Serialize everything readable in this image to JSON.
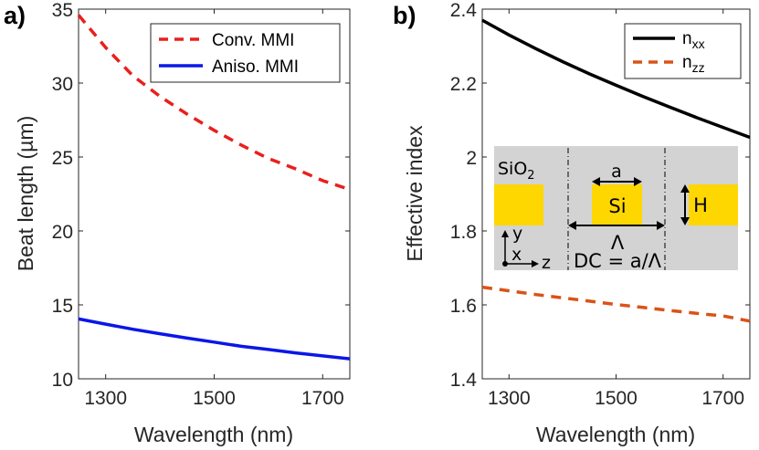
{
  "chart_data": [
    {
      "type": "line",
      "panel_label": "a)",
      "xlabel": "Wavelength (nm)",
      "ylabel": "Beat length (µm)",
      "xlim": [
        1250,
        1750
      ],
      "ylim": [
        10,
        35
      ],
      "xticks": [
        1300,
        1500,
        1700
      ],
      "yticks": [
        10,
        15,
        20,
        25,
        30,
        35
      ],
      "grid": false,
      "legend_position": "top-right",
      "series": [
        {
          "name": "Conv. MMI",
          "color": "#e8201c",
          "style": "dashed",
          "x": [
            1250,
            1300,
            1350,
            1400,
            1450,
            1500,
            1550,
            1600,
            1650,
            1700,
            1750
          ],
          "y": [
            34.6,
            32.4,
            30.5,
            29.1,
            27.9,
            26.8,
            25.8,
            24.9,
            24.2,
            23.4,
            22.8
          ]
        },
        {
          "name": "Aniso. MMI",
          "color": "#0a17e6",
          "style": "solid",
          "x": [
            1250,
            1300,
            1350,
            1400,
            1450,
            1500,
            1550,
            1600,
            1650,
            1700,
            1750
          ],
          "y": [
            14.05,
            13.7,
            13.35,
            13.05,
            12.75,
            12.48,
            12.2,
            11.98,
            11.75,
            11.55,
            11.35
          ]
        }
      ]
    },
    {
      "type": "line",
      "panel_label": "b)",
      "xlabel": "Wavelength (nm)",
      "ylabel": "Effective index",
      "xlim": [
        1250,
        1750
      ],
      "ylim": [
        1.4,
        2.4
      ],
      "xticks": [
        1300,
        1500,
        1700
      ],
      "yticks": [
        1.4,
        1.6,
        1.8,
        2.0,
        2.2,
        2.4
      ],
      "ytick_labels": [
        "1.4",
        "1.6",
        "1.8",
        "2",
        "2.2",
        "2.4"
      ],
      "grid": false,
      "legend_position": "top-right",
      "series": [
        {
          "name": "n",
          "subscript": "xx",
          "color": "#000000",
          "style": "solid",
          "x": [
            1250,
            1300,
            1350,
            1400,
            1450,
            1500,
            1550,
            1600,
            1650,
            1700,
            1750
          ],
          "y": [
            2.37,
            2.33,
            2.293,
            2.258,
            2.225,
            2.194,
            2.164,
            2.135,
            2.107,
            2.08,
            2.053
          ]
        },
        {
          "name": "n",
          "subscript": "zz",
          "color": "#d95319",
          "style": "dashed",
          "x": [
            1250,
            1300,
            1350,
            1400,
            1450,
            1500,
            1550,
            1600,
            1650,
            1700,
            1750
          ],
          "y": [
            1.648,
            1.638,
            1.628,
            1.619,
            1.61,
            1.601,
            1.593,
            1.585,
            1.577,
            1.57,
            1.556
          ]
        }
      ],
      "inset": {
        "cladding_label": "SiO",
        "cladding_sub": "2",
        "width_label": "a",
        "core_label": "Si",
        "period_label": "Λ",
        "height_label": "H",
        "axis_y": "y",
        "axis_x": "x",
        "axis_z": "z",
        "duty_cycle": "DC = a/Λ",
        "bg_color": "#d3d3d3",
        "core_color": "#ffd700"
      }
    }
  ]
}
